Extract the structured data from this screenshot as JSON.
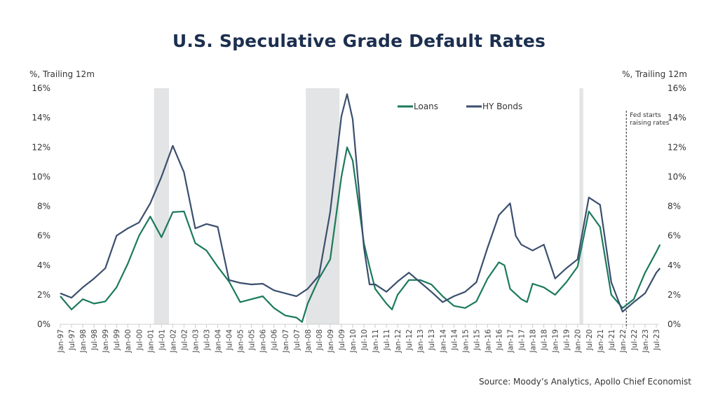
{
  "chart_data": {
    "type": "line",
    "title": "U.S. Speculative Grade Default Rates",
    "ylabel_left": "%, Trailing 12m",
    "ylabel_right": "%, Trailing 12m",
    "ylim": [
      0,
      16
    ],
    "yticks": [
      "0%",
      "2%",
      "4%",
      "6%",
      "8%",
      "10%",
      "12%",
      "14%",
      "16%"
    ],
    "xticks": [
      "Jan-97",
      "Jul-97",
      "Jan-98",
      "Jul-98",
      "Jan-99",
      "Jul-99",
      "Jan-00",
      "Jul-00",
      "Jan-01",
      "Jul-01",
      "Jan-02",
      "Jul-02",
      "Jan-03",
      "Jul-03",
      "Jan-04",
      "Jul-04",
      "Jan-05",
      "Jul-05",
      "Jan-06",
      "Jul-06",
      "Jan-07",
      "Jul-07",
      "Jan-08",
      "Jul-08",
      "Jan-09",
      "Jul-09",
      "Jan-10",
      "Jul-10",
      "Jan-11",
      "Jul-11",
      "Jan-12",
      "Jul-12",
      "Jan-13",
      "Jul-13",
      "Jan-14",
      "Jul-14",
      "Jan-15",
      "Jul-15",
      "Jan-16",
      "Jul-16",
      "Jan-17",
      "Jul-17",
      "Jan-18",
      "Jul-18",
      "Jan-19",
      "Jul-19",
      "Jan-20",
      "Jul-20",
      "Jan-21",
      "Jul-21",
      "Jan-22",
      "Jul-22",
      "Jan-23",
      "Jul-23"
    ],
    "grid": false,
    "legend": "top-center",
    "series": [
      {
        "name": "Loans",
        "color": "#1b7a5c",
        "points": [
          [
            "1997-01",
            1.9
          ],
          [
            "1997-07",
            1.0
          ],
          [
            "1998-01",
            1.7
          ],
          [
            "1998-07",
            1.4
          ],
          [
            "1999-01",
            1.55
          ],
          [
            "1999-07",
            2.5
          ],
          [
            "2000-01",
            4.1
          ],
          [
            "2000-07",
            6.0
          ],
          [
            "2001-01",
            7.3
          ],
          [
            "2001-07",
            5.9
          ],
          [
            "2002-01",
            7.6
          ],
          [
            "2002-07",
            7.65
          ],
          [
            "2003-01",
            5.5
          ],
          [
            "2003-07",
            5.0
          ],
          [
            "2004-01",
            3.9
          ],
          [
            "2004-07",
            2.9
          ],
          [
            "2005-01",
            1.5
          ],
          [
            "2005-07",
            1.7
          ],
          [
            "2006-01",
            1.9
          ],
          [
            "2006-07",
            1.1
          ],
          [
            "2007-01",
            0.6
          ],
          [
            "2007-07",
            0.45
          ],
          [
            "2007-10",
            0.15
          ],
          [
            "2008-01",
            1.4
          ],
          [
            "2008-07",
            3.1
          ],
          [
            "2009-01",
            4.4
          ],
          [
            "2009-07",
            10.0
          ],
          [
            "2009-10",
            12.0
          ],
          [
            "2010-01",
            11.1
          ],
          [
            "2010-07",
            5.5
          ],
          [
            "2010-10",
            3.9
          ],
          [
            "2011-01",
            2.4
          ],
          [
            "2011-07",
            1.4
          ],
          [
            "2011-10",
            1.0
          ],
          [
            "2012-01",
            2.0
          ],
          [
            "2012-07",
            3.0
          ],
          [
            "2013-01",
            3.0
          ],
          [
            "2013-07",
            2.7
          ],
          [
            "2014-01",
            1.9
          ],
          [
            "2014-07",
            1.25
          ],
          [
            "2015-01",
            1.1
          ],
          [
            "2015-07",
            1.55
          ],
          [
            "2016-01",
            3.1
          ],
          [
            "2016-07",
            4.2
          ],
          [
            "2016-10",
            4.0
          ],
          [
            "2017-01",
            2.4
          ],
          [
            "2017-07",
            1.7
          ],
          [
            "2017-10",
            1.5
          ],
          [
            "2018-01",
            2.75
          ],
          [
            "2018-07",
            2.5
          ],
          [
            "2019-01",
            2.0
          ],
          [
            "2019-07",
            2.85
          ],
          [
            "2020-01",
            3.9
          ],
          [
            "2020-07",
            7.65
          ],
          [
            "2021-01",
            6.6
          ],
          [
            "2021-07",
            2.0
          ],
          [
            "2022-01",
            1.1
          ],
          [
            "2022-07",
            1.7
          ],
          [
            "2023-01",
            3.5
          ],
          [
            "2023-07",
            4.9
          ],
          [
            "2023-09",
            5.4
          ]
        ]
      },
      {
        "name": "HY Bonds",
        "color": "#3b4f6e",
        "points": [
          [
            "1997-01",
            2.1
          ],
          [
            "1997-07",
            1.8
          ],
          [
            "1998-01",
            2.5
          ],
          [
            "1998-07",
            3.1
          ],
          [
            "1999-01",
            3.8
          ],
          [
            "1999-07",
            6.0
          ],
          [
            "2000-01",
            6.5
          ],
          [
            "2000-07",
            6.9
          ],
          [
            "2001-01",
            8.2
          ],
          [
            "2001-07",
            10.0
          ],
          [
            "2002-01",
            12.1
          ],
          [
            "2002-07",
            10.3
          ],
          [
            "2003-01",
            6.5
          ],
          [
            "2003-07",
            6.8
          ],
          [
            "2004-01",
            6.6
          ],
          [
            "2004-07",
            3.0
          ],
          [
            "2005-01",
            2.8
          ],
          [
            "2005-07",
            2.7
          ],
          [
            "2006-01",
            2.75
          ],
          [
            "2006-07",
            2.3
          ],
          [
            "2007-01",
            2.1
          ],
          [
            "2007-07",
            1.9
          ],
          [
            "2008-01",
            2.4
          ],
          [
            "2008-07",
            3.3
          ],
          [
            "2009-01",
            7.6
          ],
          [
            "2009-07",
            14.1
          ],
          [
            "2009-10",
            15.6
          ],
          [
            "2010-01",
            13.9
          ],
          [
            "2010-07",
            5.2
          ],
          [
            "2010-10",
            2.7
          ],
          [
            "2011-01",
            2.7
          ],
          [
            "2011-07",
            2.2
          ],
          [
            "2012-01",
            2.9
          ],
          [
            "2012-07",
            3.5
          ],
          [
            "2013-01",
            2.85
          ],
          [
            "2013-07",
            2.2
          ],
          [
            "2014-01",
            1.5
          ],
          [
            "2014-07",
            1.9
          ],
          [
            "2015-01",
            2.2
          ],
          [
            "2015-07",
            2.85
          ],
          [
            "2016-01",
            5.2
          ],
          [
            "2016-07",
            7.4
          ],
          [
            "2017-01",
            8.2
          ],
          [
            "2017-04",
            6.0
          ],
          [
            "2017-07",
            5.4
          ],
          [
            "2018-01",
            5.0
          ],
          [
            "2018-07",
            5.4
          ],
          [
            "2019-01",
            3.1
          ],
          [
            "2019-07",
            3.8
          ],
          [
            "2020-01",
            4.4
          ],
          [
            "2020-07",
            8.6
          ],
          [
            "2021-01",
            8.1
          ],
          [
            "2021-07",
            2.85
          ],
          [
            "2022-01",
            0.85
          ],
          [
            "2022-07",
            1.5
          ],
          [
            "2023-01",
            2.1
          ],
          [
            "2023-07",
            3.5
          ],
          [
            "2023-09",
            3.8
          ]
        ]
      }
    ],
    "recessions": [
      [
        "2001-03",
        "2001-11"
      ],
      [
        "2007-12",
        "2009-06"
      ],
      [
        "2020-02",
        "2020-04"
      ]
    ],
    "recession_color": "#e3e4e5",
    "annotations": [
      {
        "date": "2022-03",
        "text_lines": [
          "Fed starts",
          "raising rates"
        ]
      }
    ],
    "source": "Source: Moody’s Analytics, Apollo Chief Economist"
  }
}
